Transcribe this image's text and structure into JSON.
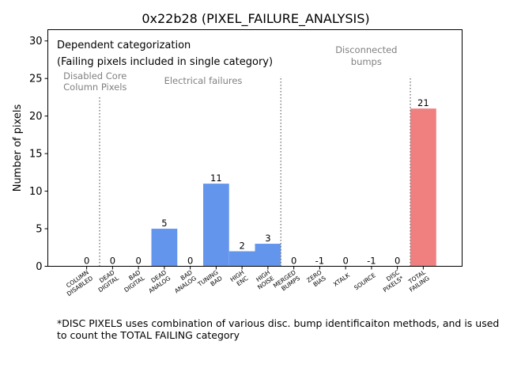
{
  "chart_data": {
    "type": "bar",
    "title": "0x22b28 (PIXEL_FAILURE_ANALYSIS)",
    "xlabel": "",
    "ylabel": "Number of pixels",
    "ylim": [
      0,
      31.5
    ],
    "xlim": [
      -1.5,
      14.5
    ],
    "yticks": [
      0,
      5,
      10,
      15,
      20,
      25,
      30
    ],
    "grid": false,
    "categories": [
      [
        "COLUMN",
        "DISABLED"
      ],
      [
        "DEAD",
        "DIGITAL"
      ],
      [
        "BAD",
        "DIGITAL"
      ],
      [
        "DEAD",
        "ANALOG"
      ],
      [
        "BAD",
        "ANALOG"
      ],
      [
        "TUNING",
        "BAD"
      ],
      [
        "HIGH",
        "ENC"
      ],
      [
        "HIGH",
        "NOISE"
      ],
      [
        "MERGED",
        "BUMPS"
      ],
      [
        "ZERO",
        "BIAS"
      ],
      [
        "XTALK"
      ],
      [
        "SOURCE"
      ],
      [
        "DISC",
        "PIXELS*"
      ],
      [
        "TOTAL",
        "FAILING"
      ]
    ],
    "values": [
      0,
      0,
      0,
      5,
      0,
      11,
      2,
      3,
      0,
      -1,
      0,
      -1,
      0,
      21
    ],
    "value_labels": [
      "0",
      "0",
      "0",
      "5",
      "0",
      "11",
      "2",
      "3",
      "0",
      "-1",
      "0",
      "-1",
      "0",
      "21"
    ],
    "bar_colors": [
      "#6495ed",
      "#6495ed",
      "#6495ed",
      "#6495ed",
      "#6495ed",
      "#6495ed",
      "#6495ed",
      "#6495ed",
      "#6495ed",
      "#6495ed",
      "#6495ed",
      "#6495ed",
      "#6495ed",
      "#f08080"
    ],
    "separators": [
      {
        "x": 0.5,
        "ymax": 22.5
      },
      {
        "x": 7.5,
        "ymax": 25.3
      },
      {
        "x": 12.5,
        "ymax": 25.3
      }
    ],
    "legend_text": [
      "Dependent categorization",
      "(Failing pixels included in single category)"
    ],
    "group_labels": [
      {
        "lines": [
          "Disabled Core",
          "Column Pixels"
        ],
        "x": -0.9,
        "align": "start"
      },
      {
        "lines": [
          "Electrical failures"
        ],
        "x": 4.5,
        "align": "middle"
      },
      {
        "lines": [
          "Disconnected",
          "bumps"
        ],
        "x": 10.8,
        "align": "middle"
      }
    ]
  },
  "footnote": "*DISC PIXELS uses combination of various disc. bump identificaiton methods, and is used to count the TOTAL FAILING category",
  "colors": {
    "bar": "#6495ed",
    "total": "#f08080",
    "group_label": "#808080",
    "separator": "#808080"
  }
}
